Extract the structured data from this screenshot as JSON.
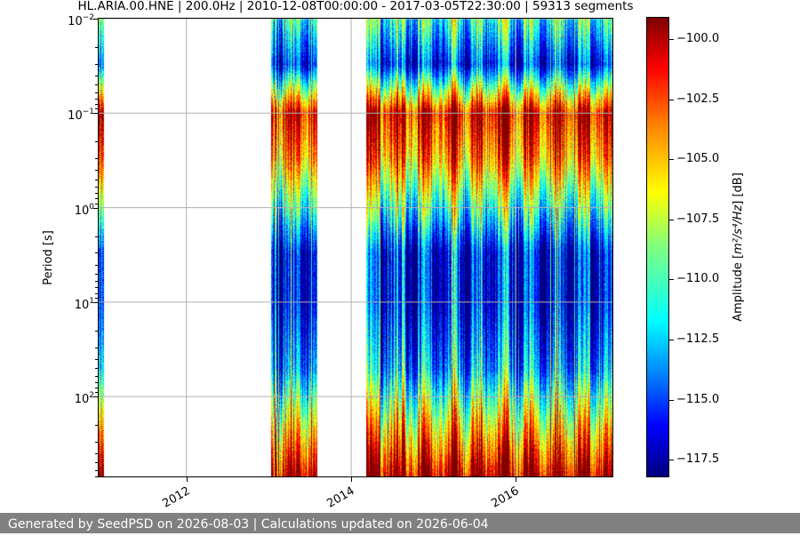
{
  "chart_data": {
    "type": "heatmap",
    "title": "HL.ARIA.00.HNE | 200.0Hz | 2010-12-08T00:00:00 - 2017-03-05T22:30:00 | 59313 segments",
    "xlabel": "",
    "ylabel": "Period [s]",
    "x_range": [
      "2010-12-08",
      "2017-03-05"
    ],
    "x_ticks": [
      "2012",
      "2014",
      "2016"
    ],
    "y_scale": "log",
    "y_inverted": true,
    "y_range": [
      0.01,
      700
    ],
    "y_ticks": [
      {
        "label": "10",
        "exp": "−2"
      },
      {
        "label": "10",
        "exp": "−1"
      },
      {
        "label": "10",
        "exp": "0"
      },
      {
        "label": "10",
        "exp": "1"
      },
      {
        "label": "10",
        "exp": "2"
      }
    ],
    "grid": true,
    "colormap": "jet",
    "colorbar": {
      "label_prefix": "Amplitude [",
      "label_units": "m²/s⁴/Hz",
      "label_suffix": "] [dB]",
      "range": [
        -118.2,
        -99.1
      ],
      "ticks": [
        "−100.0",
        "−102.5",
        "−105.0",
        "−107.5",
        "−110.0",
        "−112.5",
        "−115.0",
        "−117.5"
      ],
      "tick_values": [
        -100,
        -102.5,
        -105,
        -107.5,
        -110,
        -112.5,
        -115,
        -117.5
      ]
    },
    "data_periods": [
      {
        "start": "2010-12-08",
        "end": "2010-12-28"
      },
      {
        "start": "2013-01-10",
        "end": "2013-08-01"
      },
      {
        "start": "2014-03-10",
        "end": "2017-03-05"
      }
    ],
    "typical_profile": [
      {
        "period": 0.01,
        "db": -110
      },
      {
        "period": 0.03,
        "db": -115
      },
      {
        "period": 0.1,
        "db": -101
      },
      {
        "period": 0.3,
        "db": -104
      },
      {
        "period": 1,
        "db": -110
      },
      {
        "period": 3,
        "db": -116
      },
      {
        "period": 10,
        "db": -116
      },
      {
        "period": 50,
        "db": -113
      },
      {
        "period": 200,
        "db": -106
      },
      {
        "period": 700,
        "db": -100
      }
    ]
  },
  "footer": {
    "text": "Generated by SeedPSD on 2026-08-03 | Calculations updated on 2026-06-04"
  },
  "colors": {
    "footer_bg": "#808080",
    "grid": "#b0b0b0",
    "missing_data": "#ffffff"
  }
}
